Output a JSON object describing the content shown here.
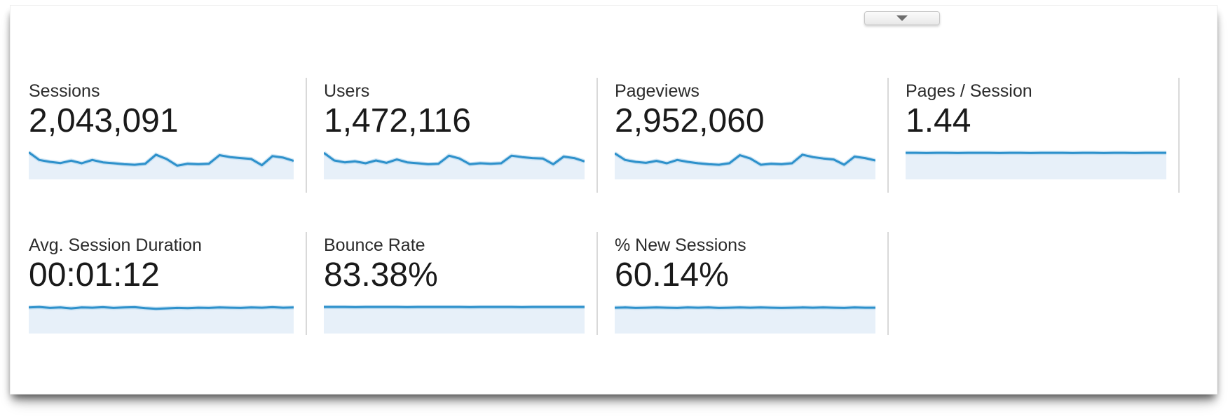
{
  "app": "analytics-overview-metrics",
  "collapse_button": {
    "icon": "triangle-down"
  },
  "colors": {
    "line": "#2e91cb",
    "line_halo": "#a9d2ec",
    "fill": "#e7f0f9",
    "divider": "#d9d9d9",
    "label_text": "#2b2b2b",
    "value_text": "#1a1a1a"
  },
  "cards": [
    {
      "label": "Sessions",
      "value": "2,043,091",
      "row": 1,
      "sparkline": [
        0.1,
        0.42,
        0.5,
        0.55,
        0.45,
        0.56,
        0.42,
        0.52,
        0.56,
        0.6,
        0.62,
        0.58,
        0.2,
        0.38,
        0.66,
        0.58,
        0.6,
        0.58,
        0.22,
        0.3,
        0.34,
        0.38,
        0.64,
        0.26,
        0.32,
        0.46
      ]
    },
    {
      "label": "Users",
      "value": "1,472,116",
      "row": 1,
      "sparkline": [
        0.12,
        0.44,
        0.52,
        0.48,
        0.56,
        0.44,
        0.54,
        0.4,
        0.52,
        0.56,
        0.6,
        0.58,
        0.24,
        0.36,
        0.6,
        0.56,
        0.58,
        0.56,
        0.24,
        0.3,
        0.34,
        0.36,
        0.6,
        0.28,
        0.34,
        0.48
      ]
    },
    {
      "label": "Pageviews",
      "value": "2,952,060",
      "row": 1,
      "sparkline": [
        0.14,
        0.42,
        0.5,
        0.54,
        0.46,
        0.56,
        0.42,
        0.5,
        0.56,
        0.6,
        0.62,
        0.56,
        0.22,
        0.36,
        0.62,
        0.58,
        0.6,
        0.56,
        0.2,
        0.3,
        0.36,
        0.4,
        0.62,
        0.28,
        0.34,
        0.44
      ]
    },
    {
      "label": "Pages / Session",
      "value": "1.44",
      "row": 1,
      "sparkline": [
        0.12,
        0.12,
        0.13,
        0.12,
        0.12,
        0.13,
        0.12,
        0.12,
        0.12,
        0.13,
        0.12,
        0.12,
        0.13,
        0.12,
        0.12,
        0.12,
        0.13,
        0.12,
        0.12,
        0.13,
        0.12,
        0.12,
        0.13,
        0.12,
        0.12,
        0.12
      ]
    },
    {
      "label": "Avg. Session Duration",
      "value": "00:01:12",
      "row": 2,
      "sparkline": [
        0.14,
        0.12,
        0.16,
        0.14,
        0.18,
        0.14,
        0.15,
        0.13,
        0.16,
        0.14,
        0.13,
        0.17,
        0.2,
        0.18,
        0.16,
        0.17,
        0.15,
        0.16,
        0.14,
        0.15,
        0.16,
        0.14,
        0.15,
        0.13,
        0.15,
        0.14
      ]
    },
    {
      "label": "Bounce Rate",
      "value": "83.38%",
      "row": 2,
      "sparkline": [
        0.12,
        0.12,
        0.12,
        0.13,
        0.12,
        0.12,
        0.12,
        0.12,
        0.13,
        0.12,
        0.12,
        0.12,
        0.12,
        0.12,
        0.13,
        0.12,
        0.12,
        0.12,
        0.12,
        0.13,
        0.12,
        0.12,
        0.12,
        0.12,
        0.12,
        0.12
      ]
    },
    {
      "label": "% New Sessions",
      "value": "60.14%",
      "row": 2,
      "sparkline": [
        0.15,
        0.14,
        0.16,
        0.15,
        0.14,
        0.15,
        0.16,
        0.14,
        0.15,
        0.14,
        0.16,
        0.15,
        0.14,
        0.15,
        0.14,
        0.15,
        0.16,
        0.15,
        0.14,
        0.15,
        0.14,
        0.15,
        0.16,
        0.14,
        0.15,
        0.15
      ]
    }
  ]
}
